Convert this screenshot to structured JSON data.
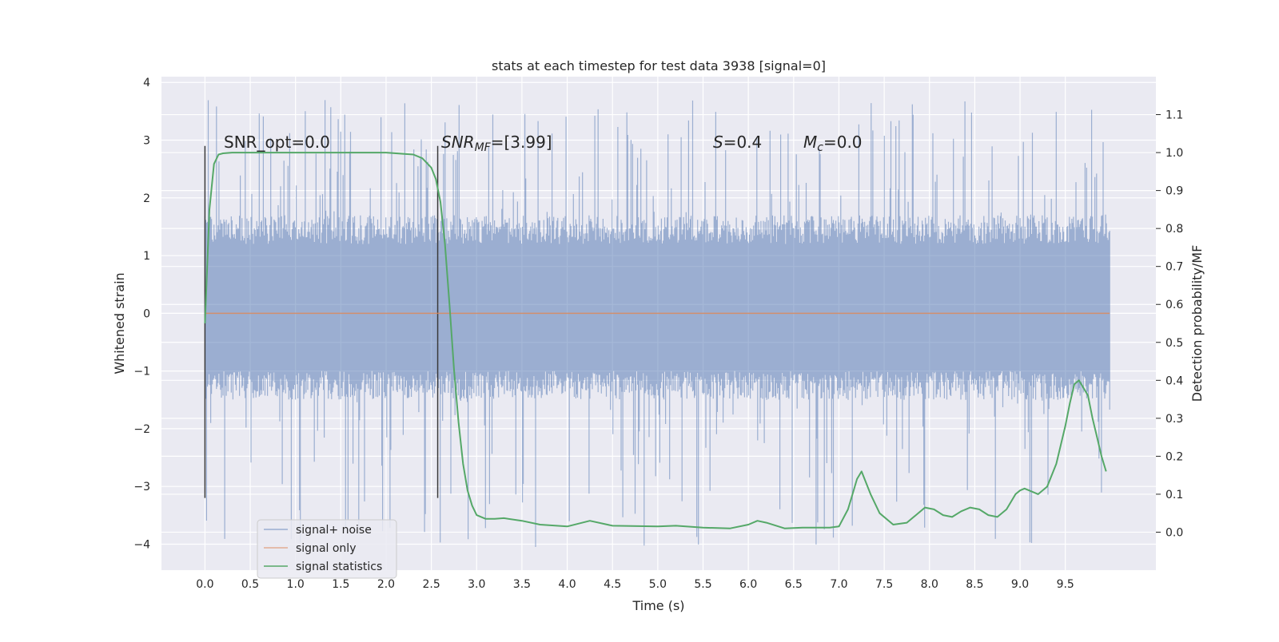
{
  "chart_data": {
    "type": "line",
    "title": "stats at each timestep for test data 3938 [signal=0]",
    "xlabel": "Time (s)",
    "ylabel_left": "Whitened strain",
    "ylabel_right": "Detection probability/MF",
    "xlim": [
      -0.48,
      10.5
    ],
    "ylim_left": [
      -4.45,
      4.1
    ],
    "ylim_right": [
      -0.1,
      1.2
    ],
    "x_ticks": [
      "0.0",
      "0.5",
      "1.0",
      "1.5",
      "2.0",
      "2.5",
      "3.0",
      "3.5",
      "4.0",
      "4.5",
      "5.0",
      "5.5",
      "6.0",
      "6.5",
      "7.0",
      "7.5",
      "8.0",
      "8.5",
      "9.0",
      "9.5"
    ],
    "x_tick_values": [
      0.0,
      0.5,
      1.0,
      1.5,
      2.0,
      2.5,
      3.0,
      3.5,
      4.0,
      4.5,
      5.0,
      5.5,
      6.0,
      6.5,
      7.0,
      7.5,
      8.0,
      8.5,
      9.0,
      9.5
    ],
    "y_left_ticks": [
      "−4",
      "−3",
      "−2",
      "−1",
      "0",
      "1",
      "2",
      "3",
      "4"
    ],
    "y_left_tick_values": [
      -4,
      -3,
      -2,
      -1,
      0,
      1,
      2,
      3,
      4
    ],
    "y_right_ticks": [
      "0.0",
      "0.1",
      "0.2",
      "0.3",
      "0.4",
      "0.5",
      "0.6",
      "0.7",
      "0.8",
      "0.9",
      "1.0",
      "1.1"
    ],
    "y_right_tick_values": [
      0.0,
      0.1,
      0.2,
      0.3,
      0.4,
      0.5,
      0.6,
      0.7,
      0.8,
      0.9,
      1.0,
      1.1
    ],
    "grid": true,
    "legend_position": "lower-left",
    "legend": [
      "signal+ noise",
      "signal only",
      "signal statistics"
    ],
    "annotations": {
      "snr_opt": "SNR_opt=0.0",
      "snr_mf_main": "SNR",
      "snr_mf_sub": "MF",
      "snr_mf_value": "=[3.99]",
      "s_label": "S",
      "s_value": "=0.4",
      "mc_main": "M",
      "mc_sub": "c",
      "mc_value": "=0.0"
    },
    "vertical_markers_x": [
      0.0,
      2.57
    ],
    "vertical_marker_range": [
      -3.2,
      2.9
    ],
    "series": [
      {
        "name": "signal+ noise",
        "axis": "left",
        "color": "#4c72b0",
        "x_range": [
          0.0,
          9.99
        ],
        "typical_envelope": [
          -1.5,
          1.7
        ],
        "extreme_range": [
          -4.05,
          3.72
        ]
      },
      {
        "name": "signal only",
        "axis": "left",
        "color": "#dd8452",
        "x": [
          0.0,
          9.99
        ],
        "y": [
          0.0,
          0.0
        ]
      },
      {
        "name": "signal statistics",
        "axis": "right",
        "color": "#55a868",
        "x": [
          0.0,
          0.05,
          0.1,
          0.15,
          0.2,
          0.3,
          0.5,
          1.0,
          1.5,
          2.0,
          2.3,
          2.4,
          2.5,
          2.55,
          2.6,
          2.65,
          2.7,
          2.75,
          2.8,
          2.85,
          2.9,
          2.95,
          3.0,
          3.1,
          3.2,
          3.3,
          3.5,
          3.7,
          4.0,
          4.25,
          4.5,
          5.0,
          5.2,
          5.5,
          5.8,
          6.0,
          6.1,
          6.2,
          6.4,
          6.6,
          6.9,
          7.0,
          7.1,
          7.15,
          7.2,
          7.25,
          7.35,
          7.45,
          7.6,
          7.75,
          7.85,
          7.95,
          8.05,
          8.15,
          8.25,
          8.35,
          8.45,
          8.55,
          8.65,
          8.75,
          8.85,
          8.95,
          9.0,
          9.05,
          9.1,
          9.2,
          9.3,
          9.4,
          9.5,
          9.55,
          9.6,
          9.65,
          9.7,
          9.75,
          9.8,
          9.85,
          9.9,
          9.95
        ],
        "y": [
          0.55,
          0.85,
          0.97,
          0.995,
          0.998,
          1.0,
          1.0,
          1.0,
          1.0,
          1.0,
          0.995,
          0.985,
          0.96,
          0.93,
          0.87,
          0.76,
          0.6,
          0.43,
          0.29,
          0.18,
          0.11,
          0.07,
          0.045,
          0.035,
          0.035,
          0.037,
          0.03,
          0.02,
          0.015,
          0.03,
          0.017,
          0.015,
          0.017,
          0.012,
          0.01,
          0.02,
          0.03,
          0.025,
          0.01,
          0.012,
          0.012,
          0.015,
          0.06,
          0.1,
          0.14,
          0.16,
          0.1,
          0.05,
          0.02,
          0.025,
          0.045,
          0.065,
          0.06,
          0.045,
          0.04,
          0.055,
          0.065,
          0.06,
          0.045,
          0.04,
          0.06,
          0.1,
          0.11,
          0.115,
          0.11,
          0.1,
          0.12,
          0.18,
          0.28,
          0.34,
          0.39,
          0.4,
          0.38,
          0.36,
          0.3,
          0.25,
          0.2,
          0.16
        ]
      }
    ]
  }
}
